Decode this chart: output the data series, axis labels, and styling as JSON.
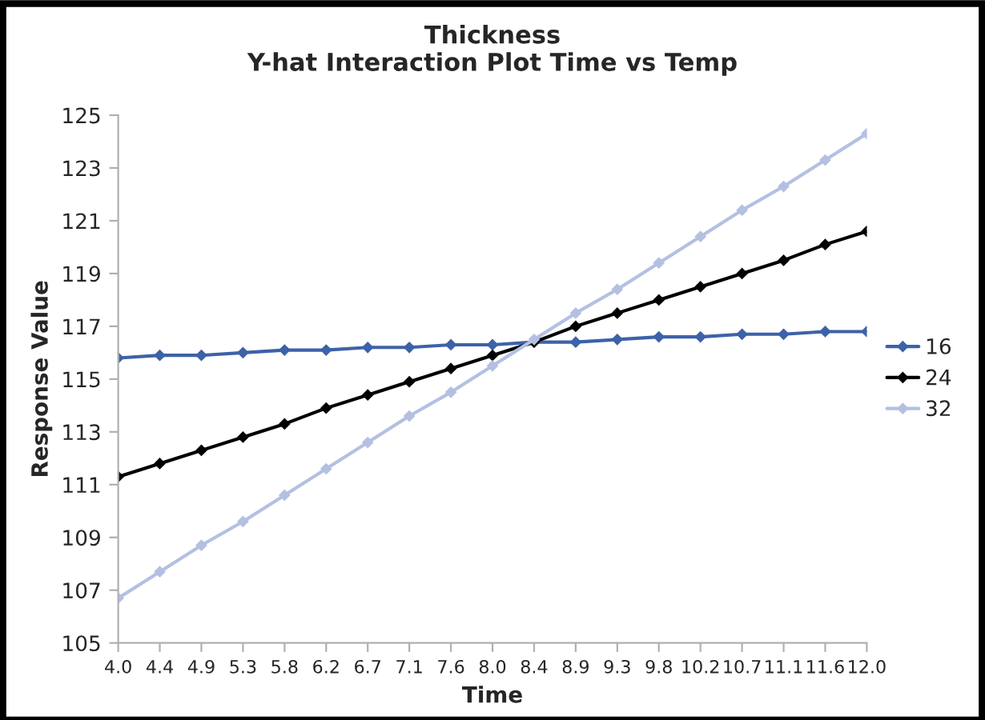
{
  "chart_data": {
    "type": "line",
    "title": "Thickness\nY-hat Interaction Plot Time vs Temp",
    "xlabel": "Time",
    "ylabel": "Response Value",
    "categories": [
      "4.0",
      "4.4",
      "4.9",
      "5.3",
      "5.8",
      "6.2",
      "6.7",
      "7.1",
      "7.6",
      "8.0",
      "8.4",
      "8.9",
      "9.3",
      "9.8",
      "10.2",
      "10.7",
      "11.1",
      "11.6",
      "12.0"
    ],
    "series": [
      {
        "name": "16",
        "color": "#3d62a8",
        "values": [
          115.8,
          115.9,
          115.9,
          116.0,
          116.1,
          116.1,
          116.2,
          116.2,
          116.3,
          116.3,
          116.4,
          116.4,
          116.5,
          116.6,
          116.6,
          116.7,
          116.7,
          116.8,
          116.8
        ]
      },
      {
        "name": "24",
        "color": "#000000",
        "values": [
          111.3,
          111.8,
          112.3,
          112.8,
          113.3,
          113.9,
          114.4,
          114.9,
          115.4,
          115.9,
          116.4,
          117.0,
          117.5,
          118.0,
          118.5,
          119.0,
          119.5,
          120.1,
          120.6
        ]
      },
      {
        "name": "32",
        "color": "#b4c0e2",
        "values": [
          106.7,
          107.7,
          108.7,
          109.6,
          110.6,
          111.6,
          112.6,
          113.6,
          114.5,
          115.5,
          116.5,
          117.5,
          118.4,
          119.4,
          120.4,
          121.4,
          122.3,
          123.3,
          124.3
        ]
      }
    ],
    "ylim": [
      105,
      125
    ],
    "yticks": [
      105,
      107,
      109,
      111,
      113,
      115,
      117,
      119,
      121,
      123,
      125
    ],
    "grid": false,
    "legend": "right",
    "marker": "diamond",
    "line_style": "solid"
  }
}
